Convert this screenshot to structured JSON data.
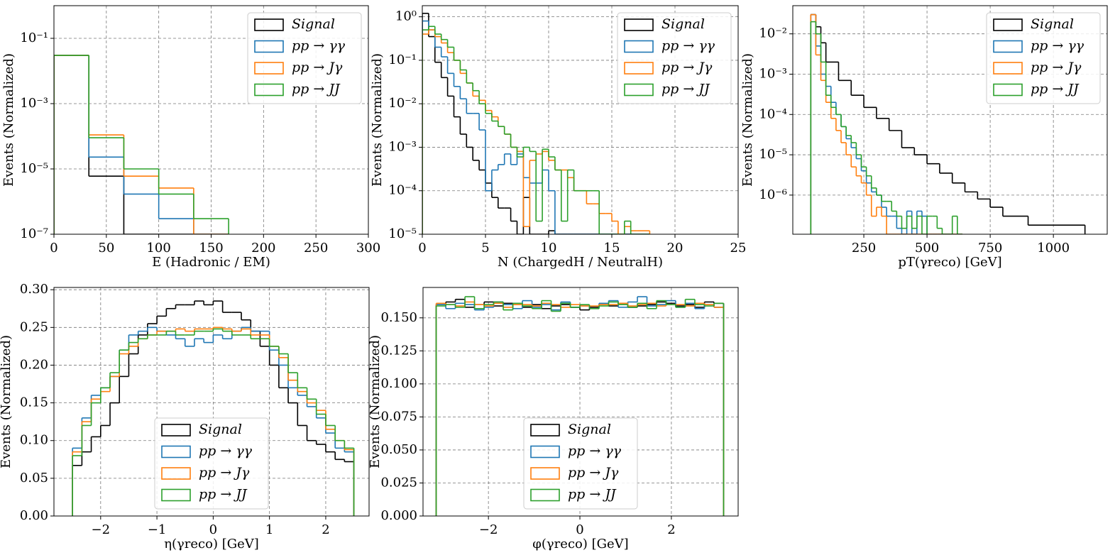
{
  "chart_data": [
    {
      "type": "histogram",
      "xlabel": "E (Hadronic / EM)",
      "ylabel": "Events (Normalized)",
      "log_y": true,
      "grid": true,
      "legend": "upper right",
      "xlim": [
        0,
        300
      ],
      "ylim": [
        1e-07,
        1
      ],
      "xticks": [
        0,
        50,
        100,
        150,
        200,
        250,
        300
      ],
      "yticks": [
        {
          "value": 1e-07,
          "label": "10⁻⁷"
        },
        {
          "value": 1e-05,
          "label": "10⁻⁵"
        },
        {
          "value": 0.001,
          "label": "10⁻³"
        },
        {
          "value": 0.1,
          "label": "10⁻¹"
        }
      ],
      "bins": [
        0,
        33.33,
        66.67,
        100,
        133.33,
        166.67
      ],
      "series": [
        {
          "name": "Signal",
          "color": "#000000",
          "values": [
            0.03,
            6e-06,
            0,
            0,
            0
          ]
        },
        {
          "name": "pp → γγ",
          "color": "#1f77b4",
          "values": [
            0.03,
            2.3e-05,
            1.7e-06,
            3e-07,
            0
          ]
        },
        {
          "name": "pp → Jγ",
          "color": "#ff7f0e",
          "values": [
            0.03,
            0.00011,
            6e-06,
            2.6e-06,
            0
          ]
        },
        {
          "name": "pp → JJ",
          "color": "#2ca02c",
          "values": [
            0.03,
            9e-05,
            1e-05,
            1.7e-06,
            3e-07
          ]
        }
      ]
    },
    {
      "type": "histogram",
      "xlabel": "N (ChargedH / NeutralH)",
      "ylabel": "Events (Normalized)",
      "log_y": true,
      "grid": true,
      "legend": "upper right",
      "xlim": [
        0,
        25
      ],
      "ylim": [
        1e-05,
        1.8
      ],
      "xticks": [
        0,
        5,
        10,
        15,
        20,
        25
      ],
      "yticks": [
        {
          "value": 1e-05,
          "label": "10⁻⁵"
        },
        {
          "value": 0.0001,
          "label": "10⁻⁴"
        },
        {
          "value": 0.001,
          "label": "10⁻³"
        },
        {
          "value": 0.01,
          "label": "10⁻²"
        },
        {
          "value": 0.1,
          "label": "10⁻¹"
        },
        {
          "value": 1,
          "label": "10⁰"
        }
      ],
      "bins": [
        0,
        0.5,
        1,
        1.5,
        2,
        2.5,
        3,
        3.5,
        4,
        4.5,
        5,
        5.5,
        6,
        6.5,
        7,
        7.5,
        8,
        8.5,
        9,
        9.5,
        10,
        10.5,
        11,
        11.5,
        12,
        12.5,
        13,
        13.5,
        14,
        14.5,
        15,
        15.5,
        16,
        16.5,
        17,
        17.5,
        18
      ],
      "series": [
        {
          "name": "Signal",
          "color": "#000000",
          "values": [
            1.2,
            0.35,
            0.09,
            0.04,
            0.015,
            0.005,
            0.002,
            0.001,
            0.0005,
            0.0003,
            0.00015,
            7e-05,
            4e-05,
            4e-05,
            2e-05,
            1e-05,
            7e-05,
            1e-05,
            0,
            0,
            1.2e-05,
            0,
            0,
            0,
            0,
            0,
            0,
            0,
            0,
            0,
            0,
            0,
            0,
            0,
            0,
            0
          ]
        },
        {
          "name": "pp → γγ",
          "color": "#1f77b4",
          "values": [
            0.8,
            0.5,
            0.2,
            0.12,
            0.05,
            0.025,
            0.013,
            0.006,
            0.006,
            0.0025,
            0.0001,
            0.0003,
            0.0004,
            0.0007,
            0.0004,
            0.0007,
            0.0002,
            0.00015,
            0.00015,
            0.0003,
            0.0001,
            1e-05,
            0,
            0,
            1e-05,
            1e-05,
            1e-05,
            0,
            0,
            0,
            1e-05,
            1e-05,
            1e-05,
            0,
            0,
            0
          ]
        },
        {
          "name": "pp → Jγ",
          "color": "#ff7f0e",
          "values": [
            0.4,
            0.5,
            0.35,
            0.25,
            0.15,
            0.1,
            0.05,
            0.03,
            0.015,
            0.012,
            0.007,
            0.005,
            0.003,
            0.002,
            0.001,
            0.0008,
            1.5e-05,
            0.0005,
            0.0007,
            0.0008,
            0.0005,
            0.0003,
            0.0003,
            0.0002,
            0.0001,
            0.0001,
            5e-05,
            5e-05,
            3e-05,
            3e-05,
            2e-05,
            1e-05,
            1.5e-05,
            1.2e-05,
            1.2e-05,
            1.2e-05
          ]
        },
        {
          "name": "pp → JJ",
          "color": "#2ca02c",
          "values": [
            0.5,
            0.6,
            0.4,
            0.3,
            0.2,
            0.1,
            0.06,
            0.03,
            0.02,
            0.01,
            0.006,
            0.004,
            0.003,
            0.002,
            0.001,
            0.0006,
            0.001,
            0.0008,
            2e-05,
            0.0009,
            0.0006,
            0.0003,
            2e-05,
            0.0003,
            0.0001,
            0.0001,
            0.0001,
            0.0001,
            1e-05,
            1e-05,
            1e-05,
            1e-05,
            2e-05,
            1e-05,
            0,
            0
          ]
        }
      ]
    },
    {
      "type": "histogram",
      "xlabel": "pT(γreco) [GeV]",
      "ylabel": "Events (Normalized)",
      "log_y": true,
      "grid": true,
      "legend": "upper right",
      "xlim": [
        -31,
        1213
      ],
      "ylim": [
        1.07e-07,
        0.05
      ],
      "xticks": [
        250,
        500,
        750,
        1000
      ],
      "yticks": [
        {
          "value": 1e-06,
          "label": "10⁻⁶"
        },
        {
          "value": 1e-05,
          "label": "10⁻⁵"
        },
        {
          "value": 0.0001,
          "label": "10⁻⁴"
        },
        {
          "value": 0.001,
          "label": "10⁻³"
        },
        {
          "value": 0.01,
          "label": "10⁻²"
        }
      ],
      "series": [
        {
          "name": "Signal",
          "color": "#000000",
          "bins": [
            40,
            60,
            80,
            100,
            150,
            200,
            250,
            300,
            350,
            400,
            450,
            500,
            550,
            600,
            650,
            700,
            750,
            800,
            900,
            1125
          ],
          "values": [
            0.03,
            0.015,
            0.006,
            0.002,
            0.0007,
            0.0003,
            0.00015,
            8e-05,
            4e-05,
            1.5e-05,
            1e-05,
            6e-06,
            3.5e-06,
            2e-06,
            1.2e-06,
            8e-07,
            5e-07,
            3e-07,
            1.8e-07
          ]
        },
        {
          "name": "pp → γγ",
          "color": "#1f77b4",
          "bins": [
            40,
            60,
            80,
            100,
            120,
            140,
            160,
            180,
            200,
            220,
            240,
            260,
            280,
            300,
            320,
            340,
            360,
            380,
            400,
            420,
            440,
            460,
            480,
            500,
            520,
            540,
            560,
            580,
            600,
            620,
            640
          ],
          "values": [
            0.03,
            0.005,
            0.001,
            0.0005,
            0.0002,
            0.0001,
            5e-05,
            2.5e-05,
            1.5e-05,
            8e-06,
            4e-06,
            2e-06,
            1.2e-06,
            1e-06,
            5e-07,
            3e-07,
            3e-07,
            1.5e-07,
            0,
            4e-07,
            0,
            4e-07,
            3e-07,
            0,
            0,
            0,
            0,
            0,
            0,
            0
          ]
        },
        {
          "name": "pp → Jγ",
          "color": "#ff7f0e",
          "bins": [
            40,
            60,
            80,
            100,
            120,
            140,
            160,
            180,
            200,
            220,
            240,
            260,
            280,
            300,
            320,
            340,
            360,
            380,
            400,
            420,
            440,
            460,
            480,
            500,
            520,
            540,
            560,
            580,
            600,
            620,
            640
          ],
          "values": [
            0.03,
            0.003,
            0.0007,
            0.0002,
            8e-05,
            4e-05,
            2e-05,
            1e-05,
            5e-06,
            3e-06,
            2e-06,
            1e-06,
            3e-07,
            5e-07,
            3e-07,
            0,
            0,
            0,
            0,
            0,
            0,
            0,
            0,
            0,
            0,
            0,
            0,
            0,
            0,
            0
          ]
        },
        {
          "name": "pp → JJ",
          "color": "#2ca02c",
          "bins": [
            40,
            60,
            80,
            100,
            120,
            140,
            160,
            180,
            200,
            220,
            240,
            260,
            280,
            300,
            320,
            340,
            360,
            380,
            400,
            420,
            440,
            460,
            480,
            500,
            520,
            540,
            560,
            580,
            600,
            620,
            640
          ],
          "values": [
            0.02,
            0.01,
            0.002,
            0.0003,
            0.00015,
            0.0001,
            5e-05,
            3e-05,
            2e-05,
            1e-05,
            5e-06,
            3e-06,
            1.5e-06,
            1e-06,
            7e-07,
            7e-07,
            4e-07,
            3e-07,
            1.5e-07,
            3e-07,
            1.5e-07,
            3e-07,
            0,
            3e-07,
            3e-07,
            1.5e-07,
            0,
            0,
            3e-07,
            0
          ]
        }
      ]
    },
    {
      "type": "histogram",
      "xlabel": "η(γreco) [GeV]",
      "ylabel": "Events (Normalized)",
      "log_y": false,
      "grid": true,
      "legend": "lower center",
      "xlim": [
        -2.83,
        2.77
      ],
      "ylim": [
        0,
        0.303
      ],
      "xticks": [
        {
          "value": -2,
          "label": "−2"
        },
        {
          "value": -1,
          "label": "−1"
        },
        0,
        1,
        2
      ],
      "yticks": [
        {
          "value": 0,
          "label": "0.00"
        },
        {
          "value": 0.05,
          "label": "0.05"
        },
        {
          "value": 0.1,
          "label": "0.10"
        },
        {
          "value": 0.15,
          "label": "0.15"
        },
        {
          "value": 0.2,
          "label": "0.20"
        },
        {
          "value": 0.25,
          "label": "0.25"
        },
        {
          "value": 0.3,
          "label": "0.30"
        }
      ],
      "bins": [
        -2.5,
        -2.333,
        -2.167,
        -2,
        -1.833,
        -1.667,
        -1.5,
        -1.333,
        -1.167,
        -1,
        -0.833,
        -0.667,
        -0.5,
        -0.333,
        -0.167,
        0,
        0.167,
        0.333,
        0.5,
        0.667,
        0.833,
        1,
        1.167,
        1.333,
        1.5,
        1.667,
        1.833,
        2,
        2.167,
        2.333,
        2.5
      ],
      "series": [
        {
          "name": "Signal",
          "color": "#000000",
          "values": [
            0.067,
            0.085,
            0.105,
            0.12,
            0.15,
            0.185,
            0.215,
            0.24,
            0.255,
            0.265,
            0.275,
            0.28,
            0.28,
            0.285,
            0.28,
            0.285,
            0.27,
            0.27,
            0.26,
            0.245,
            0.225,
            0.2,
            0.17,
            0.15,
            0.12,
            0.1,
            0.095,
            0.085,
            0.075,
            0.072
          ]
        },
        {
          "name": "pp → γγ",
          "color": "#1f77b4",
          "values": [
            0.09,
            0.13,
            0.16,
            0.17,
            0.185,
            0.22,
            0.24,
            0.245,
            0.25,
            0.245,
            0.24,
            0.235,
            0.225,
            0.235,
            0.23,
            0.24,
            0.235,
            0.245,
            0.25,
            0.245,
            0.245,
            0.22,
            0.2,
            0.17,
            0.16,
            0.145,
            0.13,
            0.11,
            0.09,
            0.085
          ]
        },
        {
          "name": "pp → Jγ",
          "color": "#ff7f0e",
          "values": [
            0.085,
            0.125,
            0.155,
            0.165,
            0.185,
            0.215,
            0.225,
            0.235,
            0.24,
            0.245,
            0.245,
            0.248,
            0.245,
            0.248,
            0.248,
            0.25,
            0.248,
            0.245,
            0.248,
            0.24,
            0.24,
            0.225,
            0.21,
            0.18,
            0.165,
            0.15,
            0.14,
            0.115,
            0.1,
            0.088
          ]
        },
        {
          "name": "pp → JJ",
          "color": "#2ca02c",
          "values": [
            0.08,
            0.12,
            0.15,
            0.17,
            0.19,
            0.22,
            0.23,
            0.235,
            0.24,
            0.24,
            0.245,
            0.24,
            0.24,
            0.245,
            0.245,
            0.248,
            0.245,
            0.24,
            0.24,
            0.235,
            0.235,
            0.225,
            0.215,
            0.19,
            0.17,
            0.155,
            0.135,
            0.12,
            0.1,
            0.09
          ]
        }
      ]
    },
    {
      "type": "histogram",
      "xlabel": "φ(γreco) [GeV]",
      "ylabel": "Events (Normalized)",
      "log_y": false,
      "grid": true,
      "legend": "lower center",
      "xlim": [
        -3.43,
        3.46
      ],
      "ylim": [
        0,
        0.173
      ],
      "xticks": [
        {
          "value": -2,
          "label": "−2"
        },
        0,
        2
      ],
      "yticks": [
        {
          "value": 0,
          "label": "0.000"
        },
        {
          "value": 0.025,
          "label": "0.025"
        },
        {
          "value": 0.05,
          "label": "0.050"
        },
        {
          "value": 0.075,
          "label": "0.075"
        },
        {
          "value": 0.1,
          "label": "0.100"
        },
        {
          "value": 0.125,
          "label": "0.125"
        },
        {
          "value": 0.15,
          "label": "0.150"
        }
      ],
      "bins": [
        -3.142,
        -2.932,
        -2.723,
        -2.513,
        -2.304,
        -2.094,
        -1.885,
        -1.676,
        -1.466,
        -1.257,
        -1.047,
        -0.838,
        -0.628,
        -0.419,
        -0.209,
        0,
        0.209,
        0.419,
        0.628,
        0.838,
        1.047,
        1.257,
        1.466,
        1.676,
        1.885,
        2.094,
        2.304,
        2.513,
        2.723,
        2.932,
        3.142
      ],
      "series": [
        {
          "name": "Signal",
          "color": "#000000",
          "values": [
            0.16,
            0.162,
            0.164,
            0.158,
            0.16,
            0.162,
            0.159,
            0.161,
            0.16,
            0.158,
            0.16,
            0.157,
            0.159,
            0.16,
            0.158,
            0.156,
            0.158,
            0.16,
            0.159,
            0.161,
            0.158,
            0.159,
            0.16,
            0.162,
            0.161,
            0.159,
            0.16,
            0.158,
            0.162,
            0.161
          ]
        },
        {
          "name": "pp → γγ",
          "color": "#1f77b4",
          "values": [
            0.16,
            0.157,
            0.161,
            0.16,
            0.156,
            0.158,
            0.162,
            0.16,
            0.157,
            0.163,
            0.158,
            0.16,
            0.156,
            0.162,
            0.158,
            0.159,
            0.157,
            0.161,
            0.163,
            0.158,
            0.162,
            0.166,
            0.159,
            0.16,
            0.163,
            0.158,
            0.161,
            0.157,
            0.16,
            0.158
          ]
        },
        {
          "name": "pp → Jγ",
          "color": "#ff7f0e",
          "values": [
            0.161,
            0.16,
            0.159,
            0.162,
            0.16,
            0.159,
            0.161,
            0.158,
            0.16,
            0.16,
            0.159,
            0.161,
            0.16,
            0.158,
            0.16,
            0.159,
            0.159,
            0.16,
            0.16,
            0.161,
            0.159,
            0.16,
            0.161,
            0.159,
            0.16,
            0.16,
            0.159,
            0.161,
            0.16,
            0.158
          ]
        },
        {
          "name": "pp → JJ",
          "color": "#2ca02c",
          "values": [
            0.159,
            0.16,
            0.158,
            0.166,
            0.157,
            0.16,
            0.162,
            0.156,
            0.161,
            0.159,
            0.157,
            0.163,
            0.155,
            0.161,
            0.158,
            0.16,
            0.157,
            0.159,
            0.162,
            0.16,
            0.158,
            0.161,
            0.157,
            0.163,
            0.16,
            0.158,
            0.164,
            0.16,
            0.159,
            0.161
          ]
        }
      ]
    }
  ]
}
